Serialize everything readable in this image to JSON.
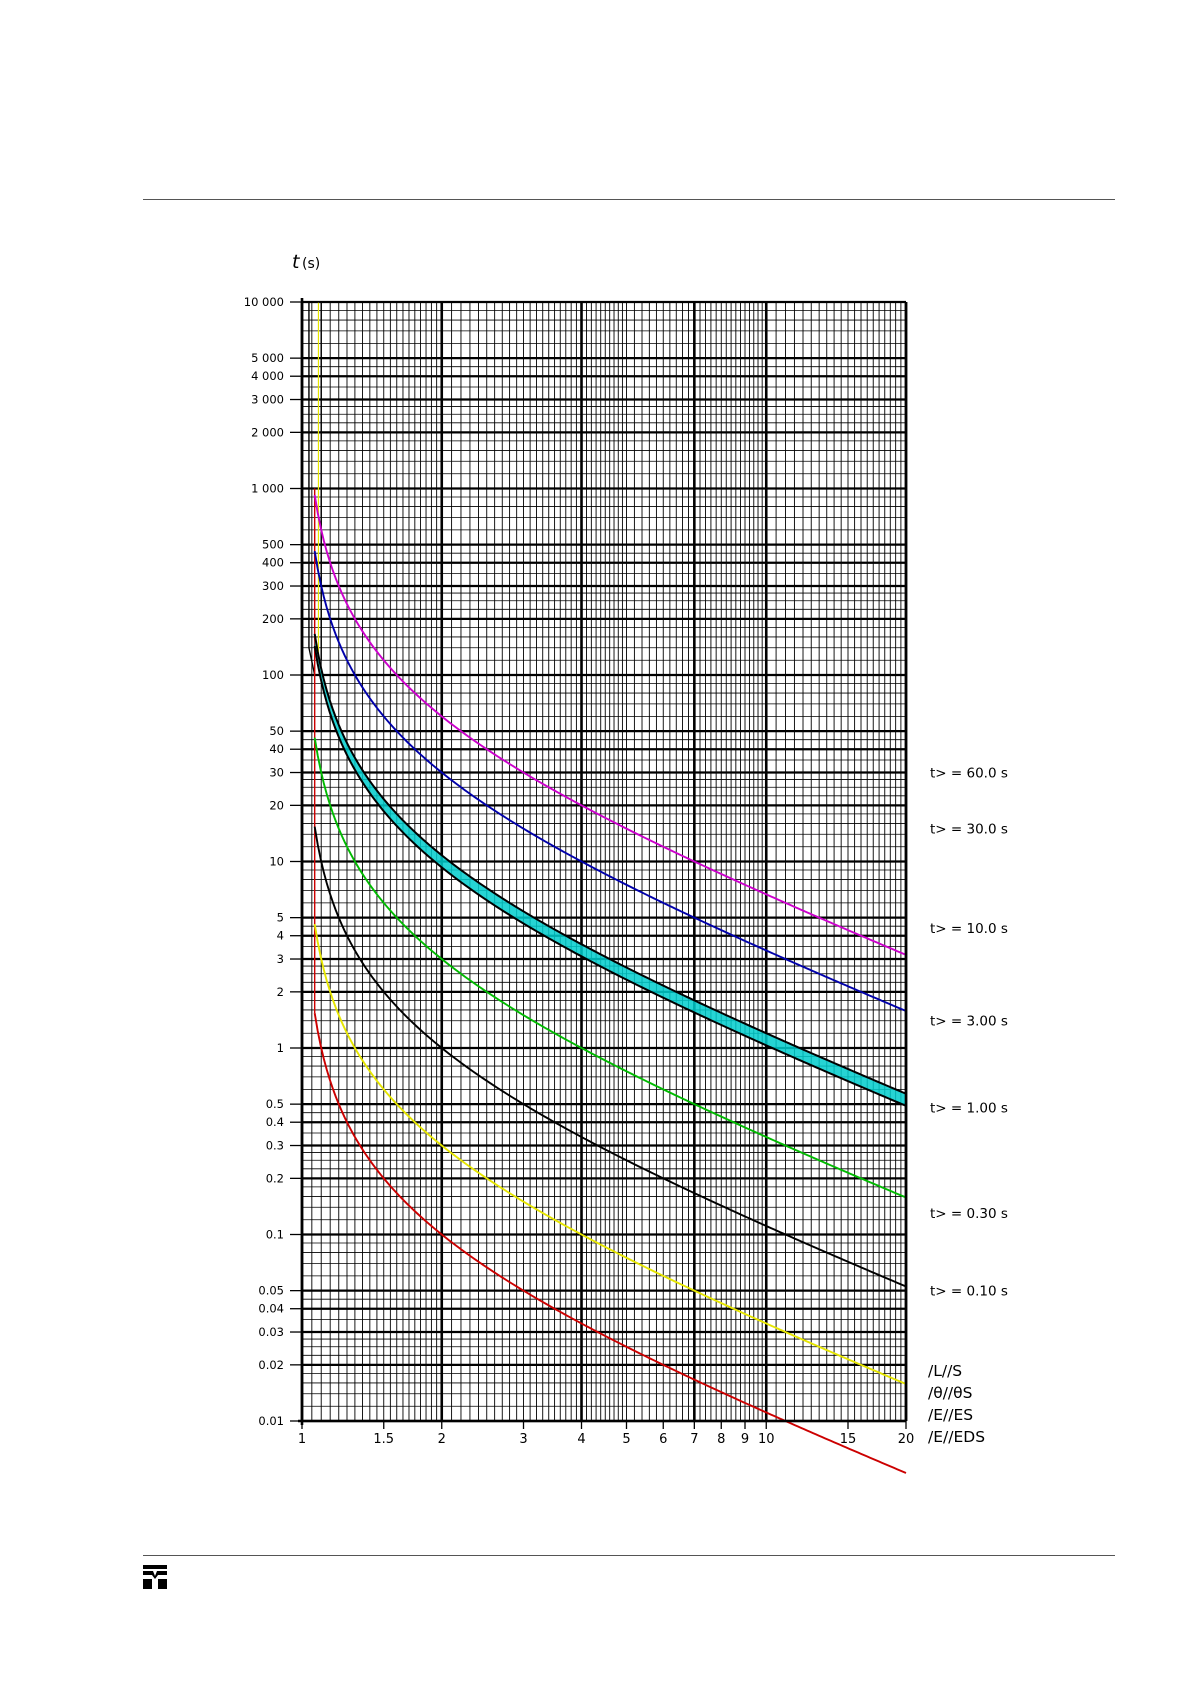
{
  "page": {
    "logo_icon": "company-logo-icon"
  },
  "chart_data": {
    "type": "line",
    "title": "",
    "ylabel_var": "t",
    "ylabel_unit": "(s)",
    "xlabel_lines": [
      "/L//S",
      "/θ//θS",
      "/E//ES",
      "/E//EDS"
    ],
    "x_scale": "log",
    "y_scale": "log",
    "xlim": [
      1,
      20
    ],
    "ylim": [
      0.01,
      10000
    ],
    "grid": true,
    "x_tick_labels": [
      {
        "v": 1,
        "label": "1"
      },
      {
        "v": 1.5,
        "label": "1.5"
      },
      {
        "v": 2,
        "label": "2"
      },
      {
        "v": 3,
        "label": "3"
      },
      {
        "v": 4,
        "label": "4"
      },
      {
        "v": 5,
        "label": "5"
      },
      {
        "v": 6,
        "label": "6"
      },
      {
        "v": 7,
        "label": "7"
      },
      {
        "v": 8,
        "label": "8"
      },
      {
        "v": 9,
        "label": "9"
      },
      {
        "v": 10,
        "label": "10"
      },
      {
        "v": 15,
        "label": "15"
      },
      {
        "v": 20,
        "label": "20"
      }
    ],
    "y_tick_labels": [
      {
        "v": 10000,
        "label": "10 000"
      },
      {
        "v": 5000,
        "label": "5 000"
      },
      {
        "v": 4000,
        "label": "4 000"
      },
      {
        "v": 3000,
        "label": "3 000"
      },
      {
        "v": 2000,
        "label": "2 000"
      },
      {
        "v": 1000,
        "label": "1 000"
      },
      {
        "v": 500,
        "label": "500"
      },
      {
        "v": 400,
        "label": "400"
      },
      {
        "v": 300,
        "label": "300"
      },
      {
        "v": 200,
        "label": "200"
      },
      {
        "v": 100,
        "label": "100"
      },
      {
        "v": 50,
        "label": "50"
      },
      {
        "v": 40,
        "label": "40"
      },
      {
        "v": 30,
        "label": "30"
      },
      {
        "v": 20,
        "label": "20"
      },
      {
        "v": 10,
        "label": "10"
      },
      {
        "v": 5,
        "label": "5"
      },
      {
        "v": 4,
        "label": "4"
      },
      {
        "v": 3,
        "label": "3"
      },
      {
        "v": 2,
        "label": "2"
      },
      {
        "v": 1,
        "label": "1"
      },
      {
        "v": 0.5,
        "label": "0.5"
      },
      {
        "v": 0.4,
        "label": "0.4"
      },
      {
        "v": 0.3,
        "label": "0.3"
      },
      {
        "v": 0.2,
        "label": "0.2"
      },
      {
        "v": 0.1,
        "label": "0.1"
      },
      {
        "v": 0.05,
        "label": "0.05"
      },
      {
        "v": 0.04,
        "label": "0.04"
      },
      {
        "v": 0.03,
        "label": "0.03"
      },
      {
        "v": 0.02,
        "label": "0.02"
      },
      {
        "v": 0.01,
        "label": "0.01"
      }
    ],
    "series": [
      {
        "name": "t> = 60.0 s",
        "setting_label": "t>  =  60.0  s",
        "color": "#cc00cc",
        "k": 60,
        "label_t": 30
      },
      {
        "name": "t> = 30.0 s",
        "setting_label": "t>  =  30.0  s",
        "color": "#0000aa",
        "k": 30,
        "label_t": 15
      },
      {
        "name": "t> = 10.0 s",
        "setting_label": "t>  =  10.0  s",
        "color": "#000000",
        "k": 10,
        "label_t": 4.4
      },
      {
        "name": "t> = 3.00 s",
        "setting_label": "t>  =  3.00  s",
        "color": "#00bb00",
        "k": 3,
        "label_t": 1.4
      },
      {
        "name": "t> = 1.00 s",
        "setting_label": "t>  =  1.00  s",
        "color": "#000000",
        "k": 1,
        "label_t": 0.48
      },
      {
        "name": "t> = 0.30 s",
        "setting_label": "t>  =  0.30  s",
        "color": "#e6e600",
        "k": 0.3,
        "label_t": 0.13
      },
      {
        "name": "t> = 0.10 s",
        "setting_label": "t>  =  0.10  s",
        "color": "#cc0000",
        "k": 0.1,
        "label_t": 0.05
      }
    ],
    "tolerance_band_color": "#00cccc"
  }
}
